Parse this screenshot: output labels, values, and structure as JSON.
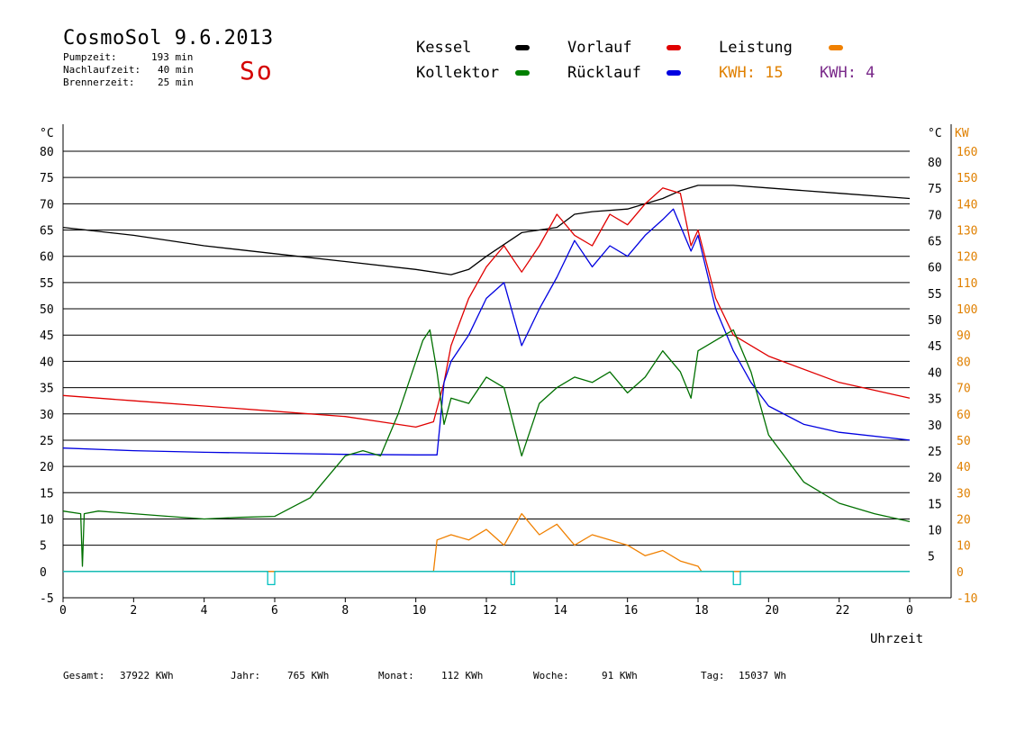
{
  "header": {
    "title": "CosmoSol 9.6.2013",
    "day": "So",
    "stats": [
      {
        "label": "Pumpzeit:",
        "value": "193 min"
      },
      {
        "label": "Nachlaufzeit:",
        "value": "40 min"
      },
      {
        "label": "Brennerzeit:",
        "value": "25 min"
      }
    ]
  },
  "legend": {
    "items": [
      {
        "label": "Kessel",
        "color": "#000000"
      },
      {
        "label": "Vorlauf",
        "color": "#e00000"
      },
      {
        "label": "Leistung",
        "color": "#f08000"
      },
      {
        "label": "Kollektor",
        "color": "#008000"
      },
      {
        "label": "Rücklauf",
        "color": "#0000e0"
      }
    ],
    "kwh_orange": "KWH: 15",
    "kwh_purple": "KWH: 4",
    "kwh_orange_color": "#e08000",
    "kwh_purple_color": "#7a2a8a"
  },
  "footer": [
    {
      "label": "Gesamt:",
      "value": "37922 KWh"
    },
    {
      "label": "Jahr:",
      "value": "765 KWh"
    },
    {
      "label": "Monat:",
      "value": "112 KWh"
    },
    {
      "label": "Woche:",
      "value": "91 KWh"
    },
    {
      "label": "Tag:",
      "value": "15037 Wh"
    }
  ],
  "chart_data": {
    "type": "line",
    "xlabel": "Uhrzeit",
    "ylabel_left": "°C",
    "ylabel_right_temp": "°C",
    "ylabel_right_power": "KW",
    "xlim": [
      0,
      24
    ],
    "ylim": [
      -5,
      80
    ],
    "ylim_power": [
      -10,
      160
    ],
    "x_ticks": [
      "0",
      "2",
      "4",
      "6",
      "8",
      "10",
      "12",
      "14",
      "16",
      "18",
      "20",
      "22",
      "0"
    ],
    "y_ticks": [
      80,
      75,
      70,
      65,
      60,
      55,
      50,
      45,
      40,
      35,
      30,
      25,
      20,
      15,
      10,
      5,
      0,
      -5
    ],
    "y_ticks_right": [
      80,
      75,
      70,
      65,
      60,
      55,
      50,
      45,
      40,
      35,
      30,
      25,
      20,
      15,
      10,
      5
    ],
    "power_ticks": [
      160,
      150,
      140,
      130,
      120,
      110,
      100,
      90,
      80,
      70,
      60,
      50,
      40,
      30,
      20,
      10,
      0,
      -10
    ],
    "grid": true,
    "series": [
      {
        "name": "Kessel",
        "color": "#000000",
        "x": [
          0,
          2,
          4,
          6,
          8,
          10,
          11,
          11.5,
          12,
          13,
          14,
          14.5,
          15,
          16,
          17,
          17.5,
          18,
          19,
          20,
          22,
          24
        ],
        "y": [
          65.5,
          64,
          62,
          60.5,
          59,
          57.5,
          56.5,
          57.5,
          60,
          64.5,
          65.5,
          68,
          68.5,
          69,
          71,
          72.5,
          73.5,
          73.5,
          73,
          72,
          71
        ]
      },
      {
        "name": "Vorlauf",
        "color": "#e00000",
        "x": [
          0,
          2,
          4,
          6,
          8,
          9,
          10,
          10.5,
          10.8,
          11,
          11.5,
          12,
          12.5,
          13,
          13.5,
          14,
          14.5,
          15,
          15.5,
          16,
          16.5,
          17,
          17.5,
          17.8,
          18,
          18.5,
          19,
          20,
          22,
          24
        ],
        "y": [
          33.5,
          32.5,
          31.5,
          30.5,
          29.5,
          28.5,
          27.5,
          28.5,
          36,
          43,
          52,
          58,
          62,
          57,
          62,
          68,
          64,
          62,
          68,
          66,
          70,
          73,
          72,
          62,
          65,
          52,
          45,
          41,
          36,
          33
        ]
      },
      {
        "name": "Rücklauf",
        "color": "#0000e0",
        "x": [
          0,
          2,
          4,
          6,
          8,
          10,
          10.6,
          10.8,
          11,
          11.5,
          12,
          12.5,
          13,
          13.5,
          14,
          14.5,
          15,
          15.5,
          16,
          16.5,
          17,
          17.3,
          17.8,
          18,
          18.5,
          19,
          19.5,
          20,
          21,
          22,
          24
        ],
        "y": [
          23.5,
          23,
          22.7,
          22.5,
          22.3,
          22.2,
          22.2,
          36,
          40,
          45,
          52,
          55,
          43,
          50,
          56,
          63,
          58,
          62,
          60,
          64,
          67,
          69,
          61,
          64,
          50,
          42,
          36,
          31.5,
          28,
          26.5,
          25
        ]
      },
      {
        "name": "Kollektor",
        "color": "#007000",
        "x": [
          0,
          0.5,
          0.55,
          0.6,
          1,
          2,
          3,
          4,
          5,
          6,
          7,
          8,
          8.5,
          9,
          9.5,
          10,
          10.2,
          10.4,
          10.6,
          10.8,
          11,
          11.5,
          12,
          12.5,
          13,
          13.5,
          14,
          14.5,
          15,
          15.5,
          16,
          16.5,
          17,
          17.5,
          17.8,
          18,
          18.5,
          19,
          19.5,
          20,
          21,
          22,
          23,
          24
        ],
        "y": [
          11.5,
          11,
          1,
          11,
          11.5,
          11,
          10.5,
          10,
          10.3,
          10.5,
          14,
          22,
          23,
          22,
          30,
          40,
          44,
          46,
          38,
          28,
          33,
          32,
          37,
          35,
          22,
          32,
          35,
          37,
          36,
          38,
          34,
          37,
          42,
          38,
          33,
          42,
          44,
          46,
          38,
          26,
          17,
          13,
          11,
          9.5
        ]
      },
      {
        "name": "Leistung",
        "color": "#f08000",
        "axis": "power",
        "x": [
          0,
          10.5,
          10.6,
          11,
          11.5,
          12,
          12.5,
          13,
          13.5,
          14,
          14.5,
          15,
          15.5,
          16,
          16.5,
          17,
          17.5,
          18,
          18.1,
          24
        ],
        "y": [
          0,
          0,
          12,
          14,
          12,
          16,
          10,
          22,
          14,
          18,
          10,
          14,
          12,
          10,
          6,
          8,
          4,
          2,
          0,
          0
        ]
      },
      {
        "name": "Pumpe",
        "color": "#00c0c0",
        "x": [
          0,
          5.8,
          5.8,
          6.0,
          6.0,
          12.7,
          12.7,
          12.8,
          12.8,
          19.0,
          19.0,
          19.2,
          19.2,
          24
        ],
        "y": [
          0,
          0,
          -2.5,
          -2.5,
          0,
          0,
          -2.5,
          -2.5,
          0,
          0,
          -2.5,
          -2.5,
          0,
          0
        ]
      }
    ]
  }
}
